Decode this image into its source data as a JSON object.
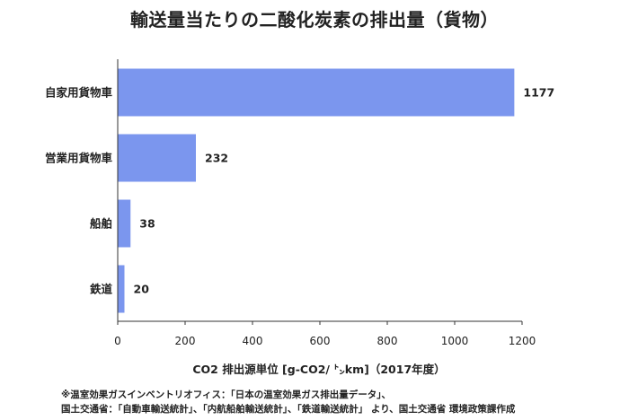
{
  "title": "輸送量当たりの二酸化炭素の排出量（貨物）",
  "xlabel": "CO2 排出源単位 [g-CO2/ ㌧km]（2017年度）",
  "footnotes": [
    "※温室効果ガスインベントリオフィス：「日本の温室効果ガス排出量データ」、",
    "国土交通省：「自動車輸送統計」、「内航船舶輸送統計」、「鉄道輸送統計」 より、国土交通省 環境政策課作成"
  ],
  "colors": {
    "bar": "#7b96ee",
    "axis": "#333333"
  },
  "chart_data": {
    "type": "bar",
    "orientation": "horizontal",
    "title": "輸送量当たりの二酸化炭素の排出量（貨物）",
    "xlabel": "CO2 排出源単位 [g-CO2/ ㌧km]（2017年度）",
    "ylabel": "",
    "categories": [
      "自家用貨物車",
      "営業用貨物車",
      "船舶",
      "鉄道"
    ],
    "values": [
      1177,
      232,
      38,
      20
    ],
    "xlim": [
      0,
      1200
    ],
    "xticks": [
      0,
      200,
      400,
      600,
      800,
      1000,
      1200
    ],
    "grid": false,
    "legend": "none"
  }
}
